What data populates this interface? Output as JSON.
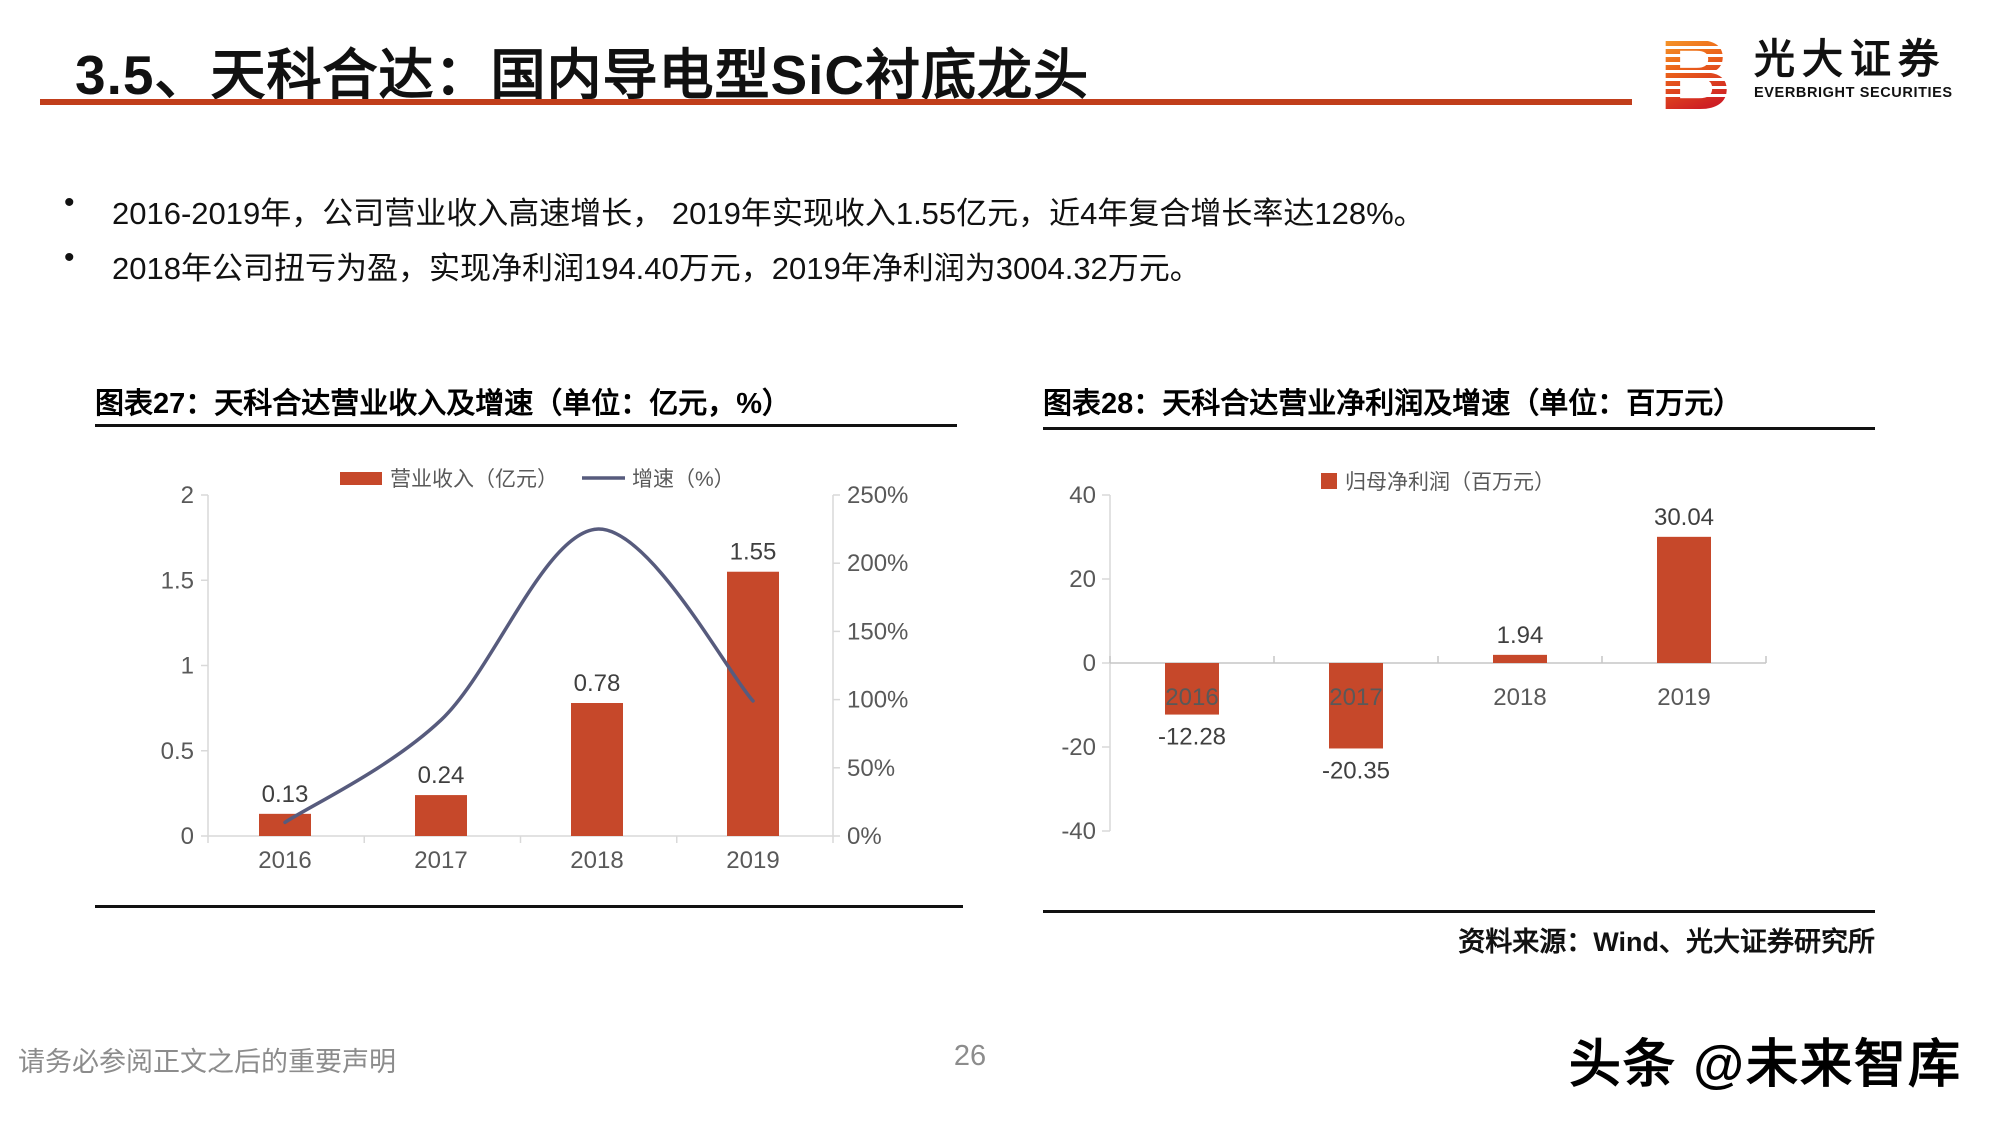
{
  "header": {
    "section_title": "3.5、天科合达：国内导电型SiC衬底龙头"
  },
  "logo": {
    "mark": "B",
    "brand_cn": "光大证券",
    "brand_en": "EVERBRIGHT SECURITIES"
  },
  "bullets": [
    "2016-2019年，公司营业收入高速增长， 2019年实现收入1.55亿元，近4年复合增长率达128%。",
    "2018年公司扭亏为盈，实现净利润194.40万元，2019年净利润为3004.32万元。"
  ],
  "charts": {
    "left_title": "图表27：天科合达营业收入及增速（单位：亿元，%）",
    "right_title": "图表28：天科合达营业净利润及增速（单位：百万元）",
    "source": "资料来源：Wind、光大证券研究所"
  },
  "footer": {
    "disclaimer": "请务必参阅正文之后的重要声明",
    "page_number": "26",
    "watermark": "头条 @未来智库"
  },
  "colors": {
    "accent_red": "#C6482A",
    "line_purple": "#575B7D",
    "header_rule": "#C13E1B",
    "axis_gray": "#D9D9D9",
    "tick_text": "#595959",
    "value_text": "#3F3F3F"
  },
  "chart_data": [
    {
      "type": "bar",
      "title": "图表27：天科合达营业收入及增速（单位：亿元，%）",
      "categories": [
        "2016",
        "2017",
        "2018",
        "2019"
      ],
      "series": [
        {
          "name": "营业收入（亿元）",
          "kind": "bar",
          "axis": "left",
          "values": [
            0.13,
            0.24,
            0.78,
            1.55
          ],
          "labels": [
            "0.13",
            "0.24",
            "0.78",
            "1.55"
          ],
          "color": "#C6482A"
        },
        {
          "name": "增速（%）",
          "kind": "line",
          "axis": "right",
          "values": [
            10,
            85,
            225,
            99
          ],
          "color": "#575B7D"
        }
      ],
      "left_axis": {
        "min": 0,
        "max": 2,
        "ticks": [
          "0",
          "0.5",
          "1",
          "1.5",
          "2"
        ],
        "tick_values": [
          0,
          0.5,
          1,
          1.5,
          2
        ]
      },
      "right_axis": {
        "min": 0,
        "max": 250,
        "ticks": [
          "0%",
          "50%",
          "100%",
          "150%",
          "200%",
          "250%"
        ],
        "tick_values": [
          0,
          50,
          100,
          150,
          200,
          250
        ]
      },
      "legend_position": "top",
      "grid": false
    },
    {
      "type": "bar",
      "title": "图表28：天科合达营业净利润及增速（单位：百万元）",
      "categories": [
        "2016",
        "2017",
        "2018",
        "2019"
      ],
      "series": [
        {
          "name": "归母净利润（百万元）",
          "kind": "bar",
          "values": [
            -12.28,
            -20.35,
            1.94,
            30.04
          ],
          "labels": [
            "-12.28",
            "-20.35",
            "1.94",
            "30.04"
          ],
          "color": "#C6482A"
        }
      ],
      "y_axis": {
        "min": -40,
        "max": 40,
        "ticks": [
          "40",
          "20",
          "0",
          "-20",
          "-40"
        ],
        "tick_values": [
          40,
          20,
          0,
          -20,
          -40
        ]
      },
      "legend_position": "top",
      "grid": false
    }
  ]
}
